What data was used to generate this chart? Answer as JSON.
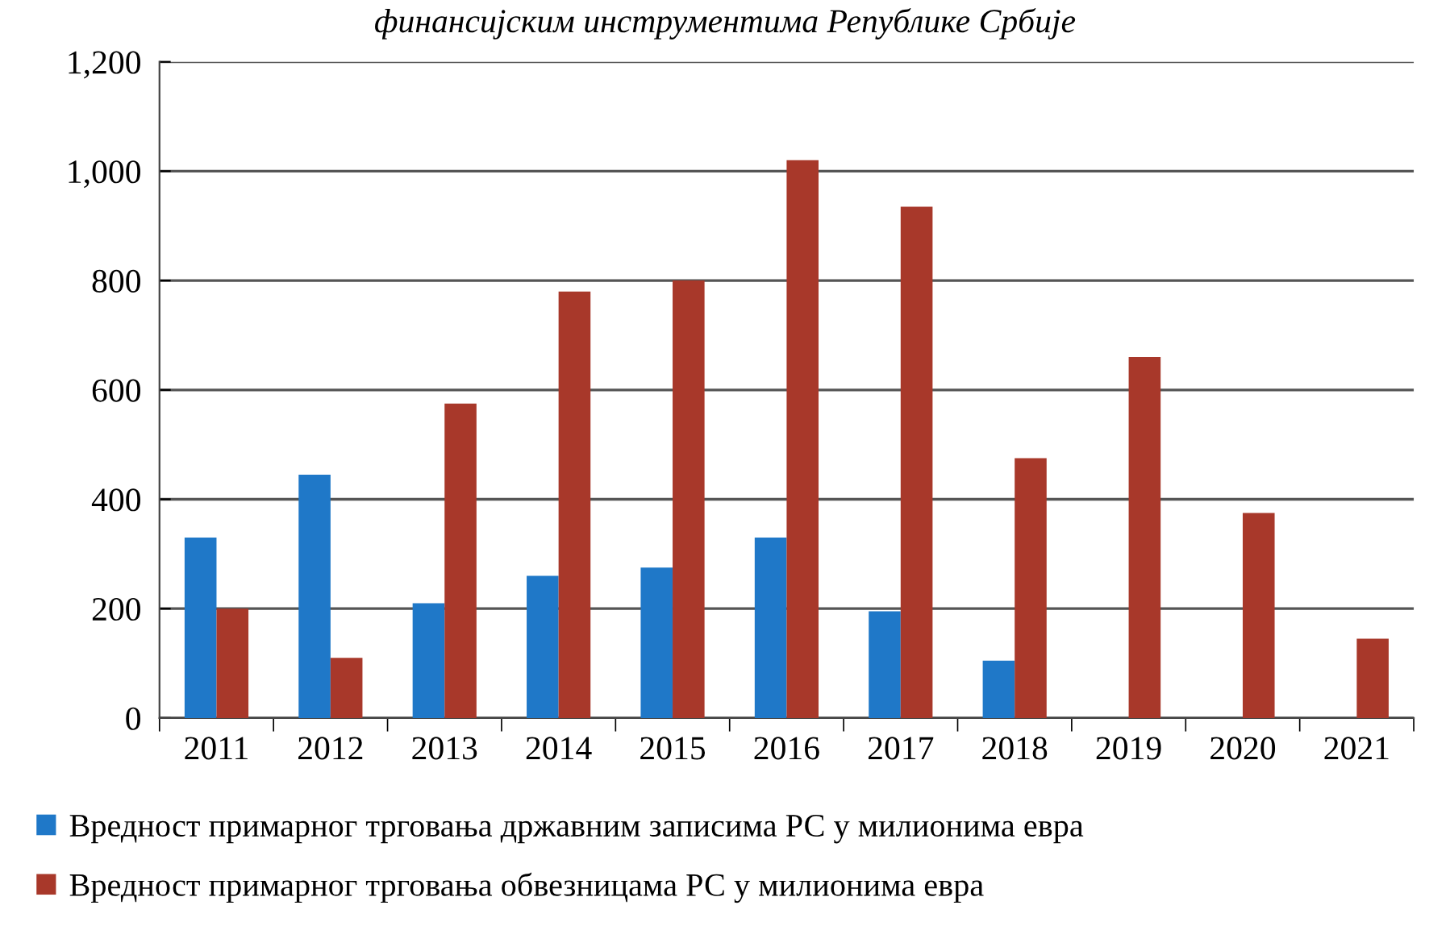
{
  "chart_data": {
    "type": "bar",
    "title": "финансијским инструментима Републике Србије",
    "categories": [
      "2011",
      "2012",
      "2013",
      "2014",
      "2015",
      "2016",
      "2017",
      "2018",
      "2019",
      "2020",
      "2021"
    ],
    "series": [
      {
        "name": "Вредност примарног трговања државним записима РС у милионима евра",
        "color": "#1f78c8",
        "values": [
          330,
          445,
          210,
          260,
          275,
          330,
          195,
          105,
          null,
          null,
          null
        ]
      },
      {
        "name": "Вредност примарног трговања обвезницама РС у милионима евра",
        "color": "#a8382a",
        "values": [
          200,
          110,
          575,
          780,
          800,
          1020,
          935,
          475,
          660,
          375,
          145
        ]
      }
    ],
    "ylim": [
      0,
      1200
    ],
    "yticks": [
      {
        "value": 0,
        "label": "0"
      },
      {
        "value": 200,
        "label": "200"
      },
      {
        "value": 400,
        "label": "400"
      },
      {
        "value": 600,
        "label": "600"
      },
      {
        "value": 800,
        "label": "800"
      },
      {
        "value": 1000,
        "label": "1,000"
      },
      {
        "value": 1200,
        "label": "1,200"
      }
    ],
    "grid": "y",
    "legend": "bottom"
  }
}
